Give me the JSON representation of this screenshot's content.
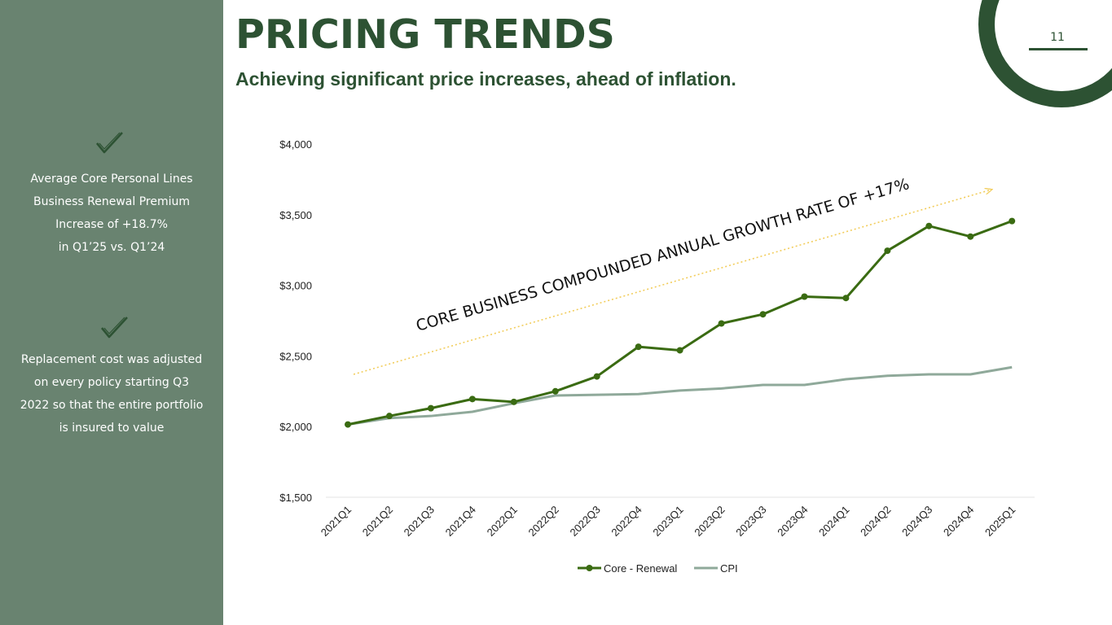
{
  "header": {
    "title": "PRICING TRENDS",
    "subtitle": "Achieving significant price increases, ahead of inflation.",
    "page_number": "11"
  },
  "sidebar": {
    "points": [
      {
        "icon": "checkmark-icon",
        "text": "Average Core Personal Lines\nBusiness Renewal Premium\nIncrease of +18.7%\nin Q1’25 vs. Q1’24"
      },
      {
        "icon": "checkmark-icon",
        "text": "Replacement cost was adjusted\non every policy starting Q3\n2022 so that the entire portfolio\nis insured to value"
      }
    ]
  },
  "colors": {
    "sidebar_bg": "#698370",
    "brand_dark_green": "#2d5233",
    "core_renewal": "#3a6b12",
    "cpi": "#8fa99a",
    "trend_arrow": "#f2cd5c"
  },
  "chart_data": {
    "type": "line",
    "categories": [
      "2021Q1",
      "2021Q2",
      "2021Q3",
      "2021Q4",
      "2022Q1",
      "2022Q2",
      "2022Q3",
      "2022Q4",
      "2023Q1",
      "2023Q2",
      "2023Q3",
      "2023Q4",
      "2024Q1",
      "2024Q2",
      "2024Q3",
      "2024Q4",
      "2025Q1"
    ],
    "series": [
      {
        "name": "Core - Renewal",
        "markers": true,
        "values": [
          2015,
          2075,
          2130,
          2195,
          2175,
          2250,
          2355,
          2565,
          2540,
          2730,
          2795,
          2920,
          2910,
          3245,
          3420,
          3345,
          3455
        ]
      },
      {
        "name": "CPI",
        "markers": false,
        "values": [
          2015,
          2060,
          2075,
          2105,
          2165,
          2220,
          2225,
          2230,
          2255,
          2270,
          2295,
          2295,
          2335,
          2360,
          2370,
          2370,
          2420
        ]
      }
    ],
    "yticks": [
      "$4,000",
      "$3,500",
      "$3,000",
      "$2,500",
      "$2,000",
      "$1,500"
    ],
    "ytick_values": [
      4000,
      3500,
      3000,
      2500,
      2000,
      1500
    ],
    "ylim": [
      1500,
      4000
    ],
    "annotation": "CORE BUSINESS COMPOUNDED ANNUAL GROWTH RATE OF +17%",
    "legend_position": "bottom",
    "grid": false
  }
}
